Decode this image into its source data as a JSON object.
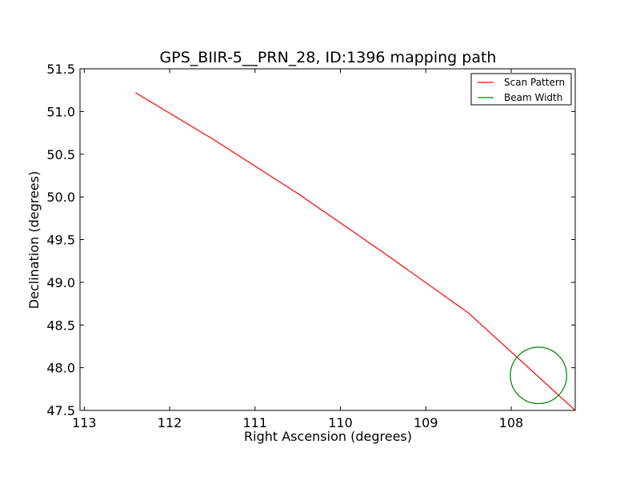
{
  "chart_data": {
    "type": "line",
    "title": "GPS_BIIR-5__PRN_28, ID:1396 mapping path",
    "xlabel": "Right Ascension (degrees)",
    "ylabel": "Declination (degrees)",
    "xlim": [
      113.05,
      107.25
    ],
    "ylim": [
      47.5,
      51.5
    ],
    "x_inverted": true,
    "x_ticks": [
      113,
      112,
      111,
      110,
      109,
      108
    ],
    "x_tick_labels": [
      "113",
      "112",
      "111",
      "110",
      "109",
      "108"
    ],
    "y_ticks": [
      47.5,
      48.0,
      48.5,
      49.0,
      49.5,
      50.0,
      50.5,
      51.0,
      51.5
    ],
    "y_tick_labels": [
      "47.5",
      "48.0",
      "48.5",
      "49.0",
      "49.5",
      "50.0",
      "50.5",
      "51.0",
      "51.5"
    ],
    "grid": false,
    "legend_position": "top-right",
    "series": [
      {
        "name": "Scan Pattern",
        "color": "#ff0000",
        "kind": "line",
        "x": [
          112.4,
          111.5,
          110.5,
          109.5,
          108.5,
          107.25
        ],
        "y": [
          51.22,
          50.68,
          50.04,
          49.35,
          48.64,
          47.5
        ]
      },
      {
        "name": "Beam Width",
        "color": "#008000",
        "kind": "circle",
        "center_x": 107.68,
        "center_y": 47.91,
        "radius_ra": 0.33,
        "radius_dec": 0.33
      }
    ]
  }
}
